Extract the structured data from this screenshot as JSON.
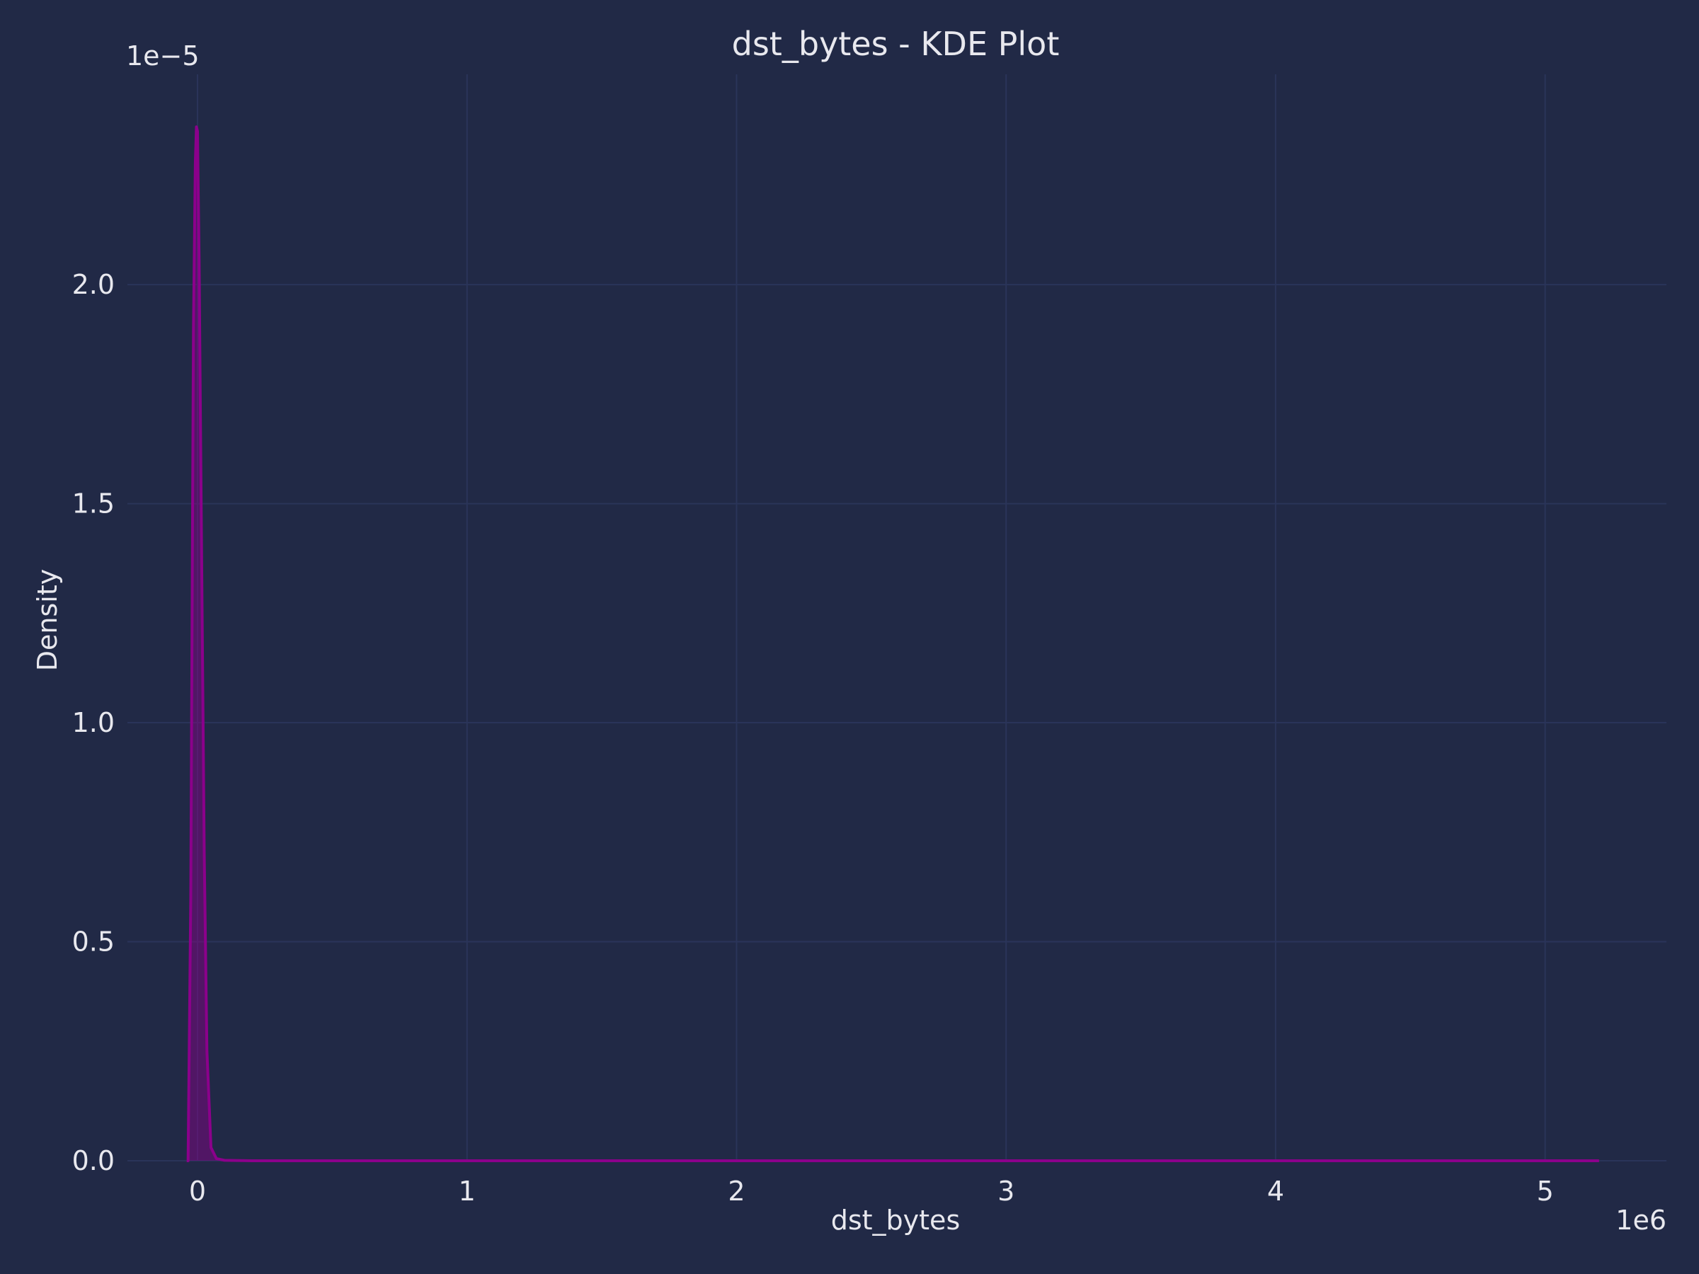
{
  "chart_data": {
    "type": "area",
    "title": "dst_bytes - KDE Plot",
    "xlabel": "dst_bytes",
    "ylabel": "Density",
    "x_offset_text": "1e6",
    "y_offset_text": "1e−5",
    "xlim": [
      -0.26,
      5.45
    ],
    "ylim": [
      0.0,
      2.48
    ],
    "x_ticks": [
      0,
      1,
      2,
      3,
      4,
      5
    ],
    "x_tick_labels": [
      "0",
      "1",
      "2",
      "3",
      "4",
      "5"
    ],
    "y_ticks": [
      0.0,
      0.5,
      1.0,
      1.5,
      2.0
    ],
    "y_tick_labels": [
      "0.0",
      "0.5",
      "1.0",
      "1.5",
      "2.0"
    ],
    "grid": true,
    "legend": "none",
    "series": [
      {
        "x": [
          -0.04,
          -0.035,
          -0.025,
          -0.015,
          -0.008,
          -0.004,
          0.0,
          0.006,
          0.015,
          0.025,
          0.035,
          0.05,
          0.07,
          0.1,
          0.2,
          0.5,
          1.0,
          2.0,
          3.0,
          4.0,
          5.0,
          5.2
        ],
        "y": [
          0.0,
          0.0,
          0.6,
          1.9,
          2.28,
          2.36,
          2.35,
          2.05,
          1.4,
          0.7,
          0.25,
          0.03,
          0.005,
          0.001,
          0.0,
          0.0,
          0.0,
          0.0,
          0.0,
          0.0,
          0.0,
          0.0
        ]
      }
    ],
    "colors": {
      "background": "#212946",
      "grid": "#2A3459",
      "text": "#E8E8EE",
      "line": "#8B008B",
      "fill": "#8B008B"
    }
  }
}
